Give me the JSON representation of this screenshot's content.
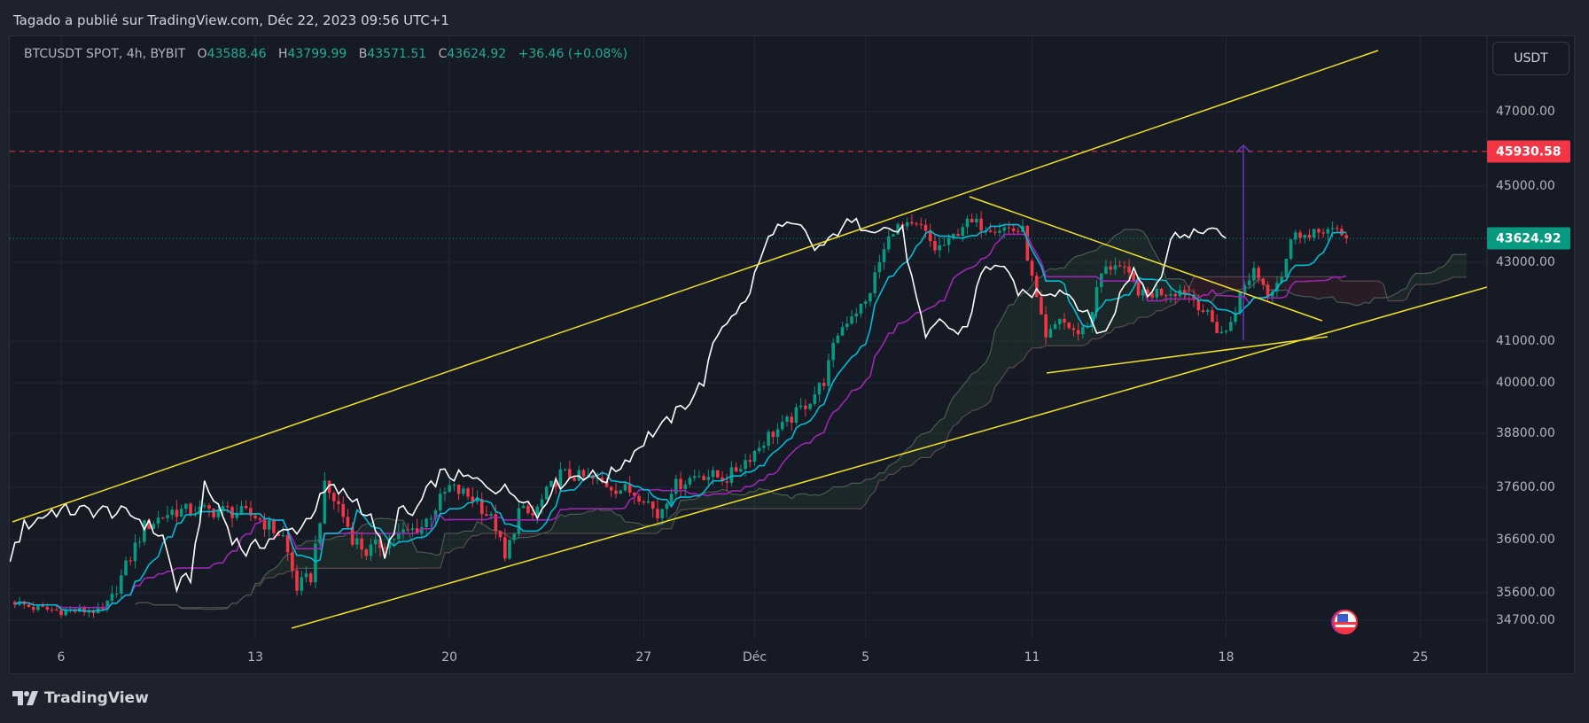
{
  "header": {
    "published": "Tagado a publié sur TradingView.com, Déc 22, 2023 09:56 UTC+1"
  },
  "legend": {
    "symbol": "BTCUSDT SPOT, 4h, BYBIT",
    "o_label": "O",
    "o_value": "43588.46",
    "h_label": "H",
    "h_value": "43799.99",
    "l_label": "B",
    "l_value": "43571.51",
    "c_label": "C",
    "c_value": "43624.92",
    "change": "+36.46 (+0.08%)"
  },
  "currency_button": "USDT",
  "price_axis": {
    "ticks": [
      "47000.00",
      "45000.00",
      "43000.00",
      "41000.00",
      "40000.00",
      "38800.00",
      "37600.00",
      "36600.00",
      "35600.00",
      "34700.00"
    ],
    "alert_tag": "45930.58",
    "last_price_tag": "43624.92"
  },
  "time_axis": {
    "ticks": [
      "6",
      "13",
      "20",
      "27",
      "Déc",
      "5",
      "11",
      "18",
      "25"
    ]
  },
  "branding": {
    "logo_text": "TradingView"
  },
  "colors": {
    "up": "#089981",
    "down": "#f23645",
    "tenkan": "#00bcd4",
    "kijun": "#9c27b0",
    "chikou": "#ffffff",
    "trendlines": "#f2e02a",
    "alert": "#f23645",
    "last_price": "#089981",
    "measure": "#673ab7"
  },
  "chart_data": {
    "type": "candlestick",
    "symbol": "BTCUSDT",
    "interval": "4h",
    "scale": "log",
    "grid": true,
    "indicators": [
      "ichimoku"
    ],
    "horizontal_lines": [
      {
        "price": 45930.58,
        "style": "dashed",
        "color": "#f23645"
      },
      {
        "price": 43624.92,
        "style": "dotted",
        "color": "#089981"
      }
    ],
    "close_path": [
      [
        "2023-11-04 08:00",
        35300
      ],
      [
        "2023-11-05 00:00",
        35100
      ],
      [
        "2023-11-06 00:00",
        35000
      ],
      [
        "2023-11-07 12:00",
        35000
      ],
      [
        "2023-11-08 00:00",
        35700
      ],
      [
        "2023-11-09 00:00",
        36850
      ],
      [
        "2023-11-10 00:00",
        37150
      ],
      [
        "2023-11-12 00:00",
        37150
      ],
      [
        "2023-11-13 00:00",
        37050
      ],
      [
        "2023-11-14 00:00",
        36650
      ],
      [
        "2023-11-14 12:00",
        35700
      ],
      [
        "2023-11-15 00:00",
        35900
      ],
      [
        "2023-11-15 12:00",
        37600
      ],
      [
        "2023-11-16 00:00",
        37250
      ],
      [
        "2023-11-16 12:00",
        36650
      ],
      [
        "2023-11-17 00:00",
        36370
      ],
      [
        "2023-11-18 00:00",
        36650
      ],
      [
        "2023-11-19 00:00",
        36850
      ],
      [
        "2023-11-20 00:00",
        37600
      ],
      [
        "2023-11-21 00:00",
        37350
      ],
      [
        "2023-11-21 16:00",
        36850
      ],
      [
        "2023-11-22 00:00",
        36200
      ],
      [
        "2023-11-22 12:00",
        37150
      ],
      [
        "2023-11-23 00:00",
        37050
      ],
      [
        "2023-11-24 00:00",
        37900
      ],
      [
        "2023-11-25 00:00",
        37800
      ],
      [
        "2023-11-26 00:00",
        37600
      ],
      [
        "2023-11-27 00:00",
        37450
      ],
      [
        "2023-11-27 12:00",
        37050
      ],
      [
        "2023-11-28 00:00",
        37600
      ],
      [
        "2023-11-29 00:00",
        37900
      ],
      [
        "2023-11-30 00:00",
        37800
      ],
      [
        "2023-12-01 00:00",
        38400
      ],
      [
        "2023-12-01 12:00",
        38750
      ],
      [
        "2023-12-02 00:00",
        38950
      ],
      [
        "2023-12-03 00:00",
        39600
      ],
      [
        "2023-12-03 12:00",
        40050
      ],
      [
        "2023-12-04 00:00",
        41200
      ],
      [
        "2023-12-04 12:00",
        41700
      ],
      [
        "2023-12-05 00:00",
        41950
      ],
      [
        "2023-12-05 12:00",
        43000
      ],
      [
        "2023-12-06 00:00",
        43900
      ],
      [
        "2023-12-07 00:00",
        43900
      ],
      [
        "2023-12-07 12:00",
        43350
      ],
      [
        "2023-12-08 00:00",
        43500
      ],
      [
        "2023-12-08 12:00",
        44000
      ],
      [
        "2023-12-09 00:00",
        44000
      ],
      [
        "2023-12-10 00:00",
        43900
      ],
      [
        "2023-12-10 16:00",
        43800
      ],
      [
        "2023-12-11 00:00",
        42550
      ],
      [
        "2023-12-11 12:00",
        41000
      ],
      [
        "2023-12-12 00:00",
        41600
      ],
      [
        "2023-12-12 12:00",
        41200
      ],
      [
        "2023-12-13 00:00",
        41400
      ],
      [
        "2023-12-13 12:00",
        42700
      ],
      [
        "2023-12-14 00:00",
        43000
      ],
      [
        "2023-12-14 12:00",
        42600
      ],
      [
        "2023-12-15 00:00",
        42150
      ],
      [
        "2023-12-15 12:00",
        42250
      ],
      [
        "2023-12-16 12:00",
        42300
      ],
      [
        "2023-12-17 00:00",
        41950
      ],
      [
        "2023-12-17 16:00",
        41300
      ],
      [
        "2023-12-18 00:00",
        41200
      ],
      [
        "2023-12-18 12:00",
        42150
      ],
      [
        "2023-12-19 00:00",
        42850
      ],
      [
        "2023-12-19 12:00",
        42250
      ],
      [
        "2023-12-20 00:00",
        42700
      ],
      [
        "2023-12-20 12:00",
        43900
      ],
      [
        "2023-12-21 00:00",
        43600
      ],
      [
        "2023-12-21 12:00",
        43900
      ],
      [
        "2023-12-22 08:00",
        43624.92
      ]
    ]
  }
}
